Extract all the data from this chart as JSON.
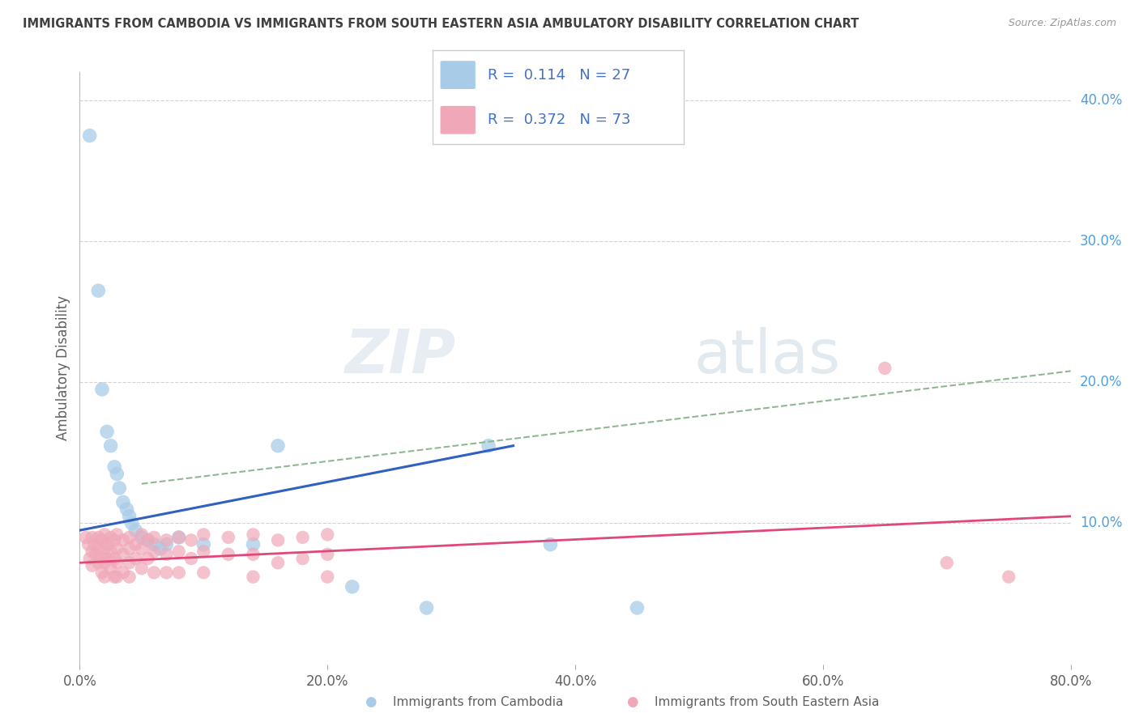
{
  "title": "IMMIGRANTS FROM CAMBODIA VS IMMIGRANTS FROM SOUTH EASTERN ASIA AMBULATORY DISABILITY CORRELATION CHART",
  "source": "Source: ZipAtlas.com",
  "ylabel_label": "Ambulatory Disability",
  "legend_label1": "Immigrants from Cambodia",
  "legend_label2": "Immigrants from South Eastern Asia",
  "r1": "0.114",
  "n1": "27",
  "r2": "0.372",
  "n2": "73",
  "color_blue": "#a8cce8",
  "color_pink": "#f0a8b8",
  "line_blue": "#3060c0",
  "line_pink": "#e04878",
  "line_dashed_color": "#90b890",
  "background": "#ffffff",
  "grid_color": "#c8c8c8",
  "title_color": "#404040",
  "axis_label_color": "#606060",
  "right_tick_color": "#50a0e0",
  "legend_r_color": "#4472c4",
  "blue_points": [
    [
      0.008,
      0.375
    ],
    [
      0.015,
      0.265
    ],
    [
      0.018,
      0.195
    ],
    [
      0.022,
      0.165
    ],
    [
      0.025,
      0.155
    ],
    [
      0.028,
      0.14
    ],
    [
      0.03,
      0.135
    ],
    [
      0.032,
      0.125
    ],
    [
      0.035,
      0.115
    ],
    [
      0.038,
      0.11
    ],
    [
      0.04,
      0.105
    ],
    [
      0.042,
      0.1
    ],
    [
      0.045,
      0.095
    ],
    [
      0.05,
      0.09
    ],
    [
      0.055,
      0.088
    ],
    [
      0.06,
      0.085
    ],
    [
      0.065,
      0.082
    ],
    [
      0.07,
      0.085
    ],
    [
      0.08,
      0.09
    ],
    [
      0.1,
      0.085
    ],
    [
      0.14,
      0.085
    ],
    [
      0.16,
      0.155
    ],
    [
      0.22,
      0.055
    ],
    [
      0.28,
      0.04
    ],
    [
      0.33,
      0.155
    ],
    [
      0.38,
      0.085
    ],
    [
      0.45,
      0.04
    ]
  ],
  "pink_points": [
    [
      0.005,
      0.09
    ],
    [
      0.007,
      0.085
    ],
    [
      0.008,
      0.075
    ],
    [
      0.01,
      0.09
    ],
    [
      0.01,
      0.08
    ],
    [
      0.01,
      0.07
    ],
    [
      0.012,
      0.085
    ],
    [
      0.013,
      0.078
    ],
    [
      0.015,
      0.09
    ],
    [
      0.015,
      0.082
    ],
    [
      0.015,
      0.072
    ],
    [
      0.018,
      0.088
    ],
    [
      0.018,
      0.075
    ],
    [
      0.018,
      0.065
    ],
    [
      0.02,
      0.092
    ],
    [
      0.02,
      0.082
    ],
    [
      0.02,
      0.072
    ],
    [
      0.02,
      0.062
    ],
    [
      0.022,
      0.085
    ],
    [
      0.022,
      0.075
    ],
    [
      0.025,
      0.09
    ],
    [
      0.025,
      0.08
    ],
    [
      0.025,
      0.068
    ],
    [
      0.028,
      0.088
    ],
    [
      0.028,
      0.075
    ],
    [
      0.028,
      0.062
    ],
    [
      0.03,
      0.092
    ],
    [
      0.03,
      0.082
    ],
    [
      0.03,
      0.072
    ],
    [
      0.03,
      0.062
    ],
    [
      0.035,
      0.088
    ],
    [
      0.035,
      0.078
    ],
    [
      0.035,
      0.065
    ],
    [
      0.04,
      0.09
    ],
    [
      0.04,
      0.082
    ],
    [
      0.04,
      0.072
    ],
    [
      0.04,
      0.062
    ],
    [
      0.045,
      0.085
    ],
    [
      0.045,
      0.075
    ],
    [
      0.05,
      0.092
    ],
    [
      0.05,
      0.082
    ],
    [
      0.05,
      0.068
    ],
    [
      0.055,
      0.088
    ],
    [
      0.055,
      0.075
    ],
    [
      0.06,
      0.09
    ],
    [
      0.06,
      0.08
    ],
    [
      0.06,
      0.065
    ],
    [
      0.07,
      0.088
    ],
    [
      0.07,
      0.078
    ],
    [
      0.07,
      0.065
    ],
    [
      0.08,
      0.09
    ],
    [
      0.08,
      0.08
    ],
    [
      0.08,
      0.065
    ],
    [
      0.09,
      0.088
    ],
    [
      0.09,
      0.075
    ],
    [
      0.1,
      0.092
    ],
    [
      0.1,
      0.08
    ],
    [
      0.1,
      0.065
    ],
    [
      0.12,
      0.09
    ],
    [
      0.12,
      0.078
    ],
    [
      0.14,
      0.092
    ],
    [
      0.14,
      0.078
    ],
    [
      0.14,
      0.062
    ],
    [
      0.16,
      0.088
    ],
    [
      0.16,
      0.072
    ],
    [
      0.18,
      0.09
    ],
    [
      0.18,
      0.075
    ],
    [
      0.2,
      0.092
    ],
    [
      0.2,
      0.078
    ],
    [
      0.2,
      0.062
    ],
    [
      0.65,
      0.21
    ],
    [
      0.7,
      0.072
    ],
    [
      0.75,
      0.062
    ]
  ],
  "xlim": [
    0.0,
    0.8
  ],
  "ylim": [
    0.0,
    0.42
  ],
  "xticks": [
    0.0,
    0.2,
    0.4,
    0.6,
    0.8
  ],
  "yticks_right": [
    0.0,
    0.1,
    0.2,
    0.3,
    0.4
  ],
  "blue_line_x": [
    0.0,
    0.35
  ],
  "blue_line_y": [
    0.095,
    0.155
  ],
  "pink_line_x": [
    0.0,
    0.8
  ],
  "pink_line_y": [
    0.072,
    0.105
  ],
  "dashed_line_x": [
    0.05,
    0.8
  ],
  "dashed_line_y": [
    0.128,
    0.208
  ]
}
